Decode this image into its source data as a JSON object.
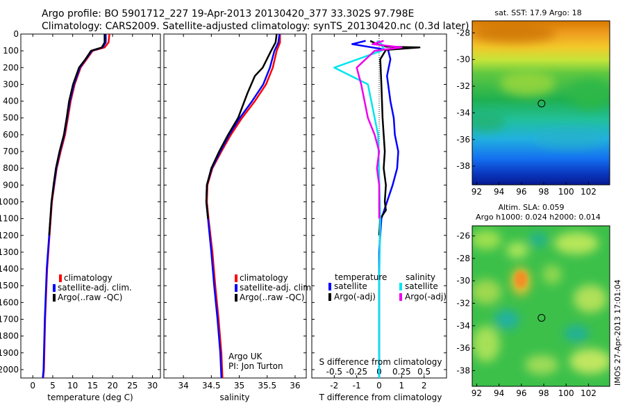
{
  "title_line1": "Argo profile: BO 5901712_227 19-Apr-2013 20130420_377 33.302S 97.798E",
  "title_line2": "Climatology: CARS2009. Satellite-adjusted climatology: synTS_20130420.nc (0.3d later)",
  "side_label": "IMOS 27-Apr-2013 17:01:04",
  "colors": {
    "red": "#ff0000",
    "blue": "#0000ff",
    "black": "#000000",
    "cyan": "#00e5ee",
    "magenta": "#ee00ee"
  },
  "legend": {
    "climatology": "climatology",
    "satadj": "satellite-adj. clim.",
    "argo": "Argo(..raw -QC)"
  },
  "panel3_legend": {
    "temperature": "temperature",
    "salinity": "salinity",
    "satellite": "satellite",
    "argo_adj": "Argo(-adj)"
  },
  "credits": {
    "line1": "Argo UK",
    "line2": "PI: Jon Turton"
  },
  "chart_data": [
    {
      "id": "temp",
      "type": "line",
      "xlabel": "temperature (deg C)",
      "ylabel": "",
      "xlim": [
        -3,
        32
      ],
      "ylim": [
        2050,
        0
      ],
      "xticks": [
        0,
        5,
        10,
        15,
        20,
        25,
        30
      ],
      "yticks": [
        0,
        100,
        200,
        300,
        400,
        500,
        600,
        700,
        800,
        900,
        1000,
        1100,
        1200,
        1300,
        1400,
        1500,
        1600,
        1700,
        1800,
        1900,
        2000
      ],
      "series": [
        {
          "name": "climatology",
          "color": "red",
          "x": [
            19.2,
            19.0,
            18.0,
            15.0,
            13.5,
            12.0,
            10.5,
            9.5,
            8.8,
            8.1,
            7.0,
            6.0,
            5.4,
            4.8,
            4.2,
            3.6,
            3.1,
            2.8,
            2.6
          ],
          "y": [
            0,
            50,
            80,
            100,
            150,
            200,
            300,
            400,
            500,
            600,
            700,
            800,
            900,
            1000,
            1200,
            1400,
            1700,
            2000,
            2050
          ]
        },
        {
          "name": "satellite-adj. clim.",
          "color": "blue",
          "x": [
            18.3,
            18.3,
            17.5,
            14.8,
            13.3,
            11.8,
            10.3,
            9.3,
            8.6,
            7.9,
            6.8,
            5.9,
            5.3,
            4.7,
            4.1,
            3.5,
            3.0,
            2.7,
            2.5
          ],
          "y": [
            0,
            50,
            80,
            100,
            150,
            200,
            300,
            400,
            500,
            600,
            700,
            800,
            900,
            1000,
            1200,
            1400,
            1700,
            2000,
            2050
          ]
        },
        {
          "name": "Argo(..raw -QC)",
          "color": "black",
          "x": [
            18.0,
            18.0,
            17.3,
            14.6,
            13.2,
            11.6,
            10.1,
            9.1,
            8.5,
            7.8,
            6.7,
            5.8,
            5.2,
            4.7,
            4.1
          ],
          "y": [
            0,
            50,
            80,
            100,
            150,
            200,
            300,
            400,
            500,
            600,
            700,
            800,
            900,
            1000,
            1200
          ]
        }
      ]
    },
    {
      "id": "salt",
      "type": "line",
      "xlabel": "salinity",
      "ylabel": "",
      "xlim": [
        33.65,
        36.2
      ],
      "ylim": [
        2050,
        0
      ],
      "xticks": [
        34,
        34.5,
        35,
        35.5,
        36
      ],
      "yticks": [
        0,
        100,
        200,
        300,
        400,
        500,
        600,
        700,
        800,
        900,
        1000,
        1100,
        1200,
        1300,
        1400,
        1500,
        1600,
        1700,
        1800,
        1900,
        2000
      ],
      "series": [
        {
          "name": "climatology",
          "color": "red",
          "x": [
            35.73,
            35.73,
            35.67,
            35.6,
            35.48,
            35.28,
            35.05,
            34.85,
            34.68,
            34.52,
            34.43,
            34.42,
            34.45,
            34.52,
            34.57,
            34.63,
            34.68,
            34.7
          ],
          "y": [
            0,
            50,
            100,
            200,
            300,
            400,
            500,
            600,
            700,
            800,
            900,
            1000,
            1100,
            1300,
            1500,
            1700,
            1900,
            2050
          ]
        },
        {
          "name": "satellite-adj. clim.",
          "color": "blue",
          "x": [
            35.72,
            35.7,
            35.63,
            35.55,
            35.43,
            35.23,
            35.01,
            34.82,
            34.66,
            34.51,
            34.42,
            34.41,
            34.44,
            34.5,
            34.55,
            34.61,
            34.66,
            34.68
          ],
          "y": [
            0,
            50,
            100,
            200,
            300,
            400,
            500,
            600,
            700,
            800,
            900,
            1000,
            1100,
            1300,
            1500,
            1700,
            1900,
            2050
          ]
        },
        {
          "name": "Argo(..raw -QC)",
          "color": "black",
          "x": [
            35.67,
            35.65,
            35.57,
            35.42,
            35.28,
            35.15,
            34.98,
            34.8,
            34.64,
            34.5,
            34.42,
            34.41,
            34.44
          ],
          "y": [
            0,
            50,
            100,
            200,
            250,
            350,
            500,
            600,
            700,
            800,
            900,
            1000,
            1100
          ]
        }
      ]
    },
    {
      "id": "diff",
      "type": "line",
      "xlabel": "T difference from climatology",
      "xlabel_top": "S difference from climatology",
      "xlim": [
        -3,
        3
      ],
      "ylim": [
        2050,
        0
      ],
      "xticks": [
        -2,
        -1,
        0,
        1,
        2
      ],
      "xticklabels_top": [
        "-0.5",
        "-0.25",
        "0",
        "0.25",
        "0.5"
      ],
      "xticks_top": [
        -2,
        -1,
        0,
        1,
        2
      ],
      "yticks": [
        0,
        100,
        200,
        300,
        400,
        500,
        600,
        700,
        800,
        900,
        1000,
        1100,
        1200,
        1300,
        1400,
        1500,
        1600,
        1700,
        1800,
        1900,
        2000
      ],
      "series": [
        {
          "name": "temperature satellite",
          "color": "blue",
          "x": [
            -0.6,
            -1.2,
            -0.3,
            0.4,
            0.5,
            0.35,
            0.5,
            0.65,
            0.7,
            0.85,
            0.8,
            0.6,
            0.35,
            0.1,
            0.0,
            0.0
          ],
          "y": [
            40,
            60,
            80,
            95,
            150,
            250,
            400,
            500,
            600,
            700,
            800,
            900,
            1000,
            1100,
            1300,
            2050
          ]
        },
        {
          "name": "temperature Argo(-adj)",
          "color": "black",
          "x": [
            -0.4,
            -0.1,
            0.3,
            1.8,
            0.3,
            0.05,
            0.1,
            0.15,
            0.25,
            0.2,
            0.3,
            0.25,
            0.3,
            0.05,
            0.0
          ],
          "y": [
            40,
            60,
            75,
            80,
            95,
            150,
            300,
            500,
            700,
            800,
            900,
            1000,
            1050,
            1100,
            1200
          ]
        },
        {
          "name": "salinity satellite",
          "color": "cyan",
          "x": [
            -0.1,
            0.2,
            0.1,
            -2.0,
            -0.5,
            -0.05,
            0.05,
            0.0,
            0.0
          ],
          "y": [
            40,
            70,
            100,
            200,
            300,
            600,
            1100,
            1500,
            2050
          ]
        },
        {
          "name": "salinity Argo(-adj)",
          "color": "magenta",
          "x": [
            0.2,
            -0.3,
            1.0,
            -0.2,
            -1.0,
            -0.8,
            -0.5,
            -0.2,
            0.0,
            -0.1,
            0.0,
            0.0
          ],
          "y": [
            40,
            60,
            80,
            100,
            200,
            300,
            500,
            600,
            700,
            800,
            900,
            1100
          ]
        }
      ]
    },
    {
      "id": "sst",
      "type": "heatmap",
      "title": "sat. SST: 17.9  Argo: 18",
      "xlim": [
        91.6,
        103.9
      ],
      "ylim": [
        -39.4,
        -27.1
      ],
      "xticks": [
        92,
        94,
        96,
        98,
        100,
        102
      ],
      "yticks": [
        -28,
        -30,
        -32,
        -34,
        -36,
        -38
      ],
      "marker": {
        "lon": 97.8,
        "lat": -33.3
      }
    },
    {
      "id": "sla",
      "type": "heatmap",
      "title": "Altim. SLA: 0.059",
      "subtitle": "Argo h1000: 0.024 h2000: 0.014",
      "xlim": [
        91.6,
        103.9
      ],
      "ylim": [
        -39.4,
        -25.1
      ],
      "xticks": [
        92,
        94,
        96,
        98,
        100,
        102
      ],
      "yticks": [
        -26,
        -28,
        -30,
        -32,
        -34,
        -36,
        -38
      ],
      "marker": {
        "lon": 97.8,
        "lat": -33.3
      }
    }
  ]
}
